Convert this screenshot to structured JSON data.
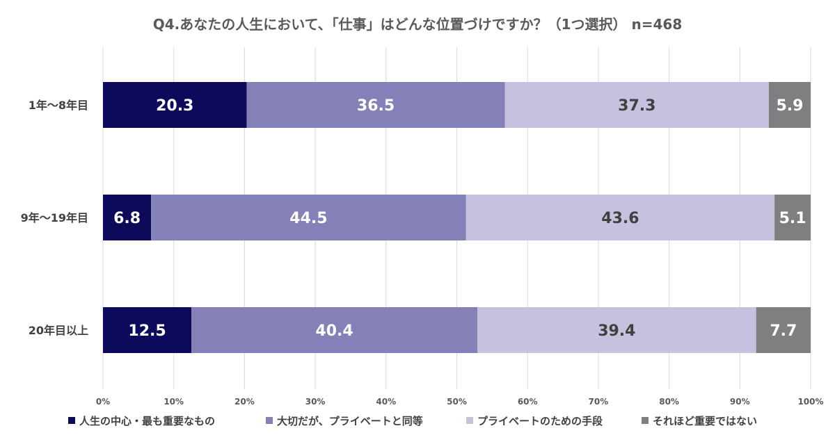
{
  "chart_data": {
    "type": "bar",
    "orientation": "horizontal",
    "stacked": true,
    "title": "Q4.あなたの人生において、「仕事」はどんな位置づけですか？（1つ選択） n=468",
    "categories": [
      "1年～8年目",
      "9年～19年目",
      "20年目以上"
    ],
    "series": [
      {
        "name": "人生の中心・最も重要なもの",
        "color": "#0d0a5c",
        "label_color": "#ffffff",
        "values": [
          20.3,
          6.8,
          12.5
        ]
      },
      {
        "name": "大切だが、プライベートと同等",
        "color": "#8480b8",
        "label_color": "#ffffff",
        "values": [
          36.5,
          44.5,
          40.4
        ]
      },
      {
        "name": "プライベートのための手段",
        "color": "#c5c1de",
        "label_color": "#404040",
        "values": [
          37.3,
          43.6,
          39.4
        ]
      },
      {
        "name": "それほど重要ではない",
        "color": "#7f7f7f",
        "label_color": "#ffffff",
        "values": [
          5.9,
          5.1,
          7.7
        ]
      }
    ],
    "value_labels": [
      [
        "20.3",
        "6.8",
        "12.5"
      ],
      [
        "36.5",
        "44.5",
        "40.4"
      ],
      [
        "37.3",
        "43.6",
        "39.4"
      ],
      [
        "5.9",
        "5.1",
        "7.7"
      ]
    ],
    "x_ticks": [
      "0%",
      "10%",
      "20%",
      "30%",
      "40%",
      "50%",
      "60%",
      "70%",
      "80%",
      "90%",
      "100%"
    ],
    "xlim": [
      0,
      100
    ],
    "grid": true,
    "legend_position": "bottom"
  }
}
